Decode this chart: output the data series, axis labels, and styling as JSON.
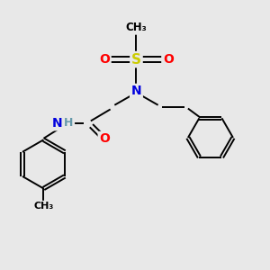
{
  "bg_color": "#e8e8e8",
  "atom_colors": {
    "N": "#0000dd",
    "O": "#ff0000",
    "S": "#cccc00",
    "C": "#000000",
    "H": "#6699aa"
  },
  "font_size_atom": 10,
  "font_size_small": 9,
  "figsize": [
    3.0,
    3.0
  ],
  "dpi": 100,
  "lw": 1.4
}
